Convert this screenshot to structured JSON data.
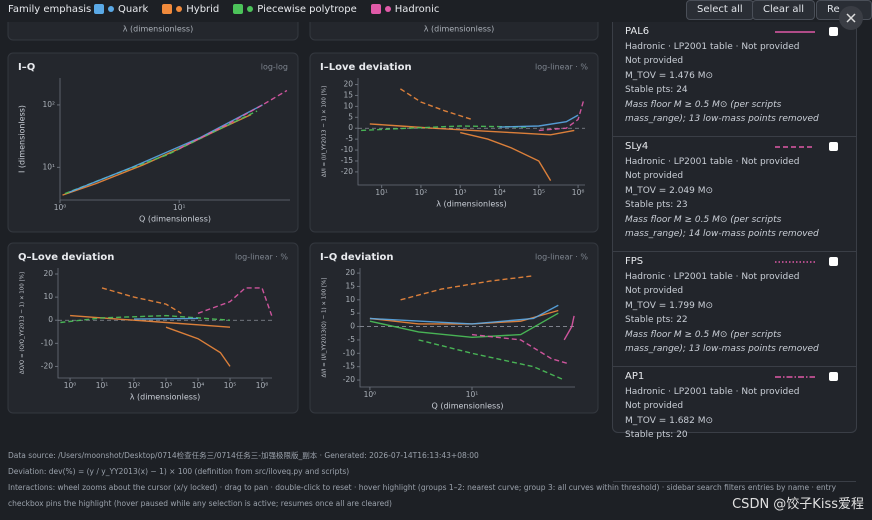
{
  "header": {
    "label": "Family emphasis",
    "families": [
      {
        "name": "Quark",
        "color": "#5aa9e6"
      },
      {
        "name": "Hybrid",
        "color": "#f08a3c"
      },
      {
        "name": "Piecewise polytrope",
        "color": "#4cc35a"
      },
      {
        "name": "Hadronic",
        "color": "#e05aa8"
      }
    ],
    "buttons": [
      "Select all",
      "Clear all",
      "Re"
    ]
  },
  "top_partial_labels": [
    "λ (dimensionless)",
    "λ (dimensionless)"
  ],
  "panels": [
    {
      "title": "I–Q",
      "scale": "log-log",
      "xlabel": "Q (dimensionless)",
      "ylabel": "I (dimensionless)",
      "xscale": "log",
      "yscale": "log",
      "xlim": [
        1,
        85
      ],
      "ylim": [
        3,
        270
      ],
      "xticks": [
        {
          "value": 1,
          "label": "10⁰"
        },
        {
          "value": 10,
          "label": "10¹"
        }
      ],
      "yticks": [
        {
          "value": 10,
          "label": "10¹"
        },
        {
          "value": 100,
          "label": "10²"
        }
      ],
      "series": [
        {
          "color": "#f08a3c",
          "x": [
            1.05,
            2,
            5,
            10,
            20,
            40
          ],
          "values": [
            3.6,
            5.5,
            11,
            20,
            38,
            70
          ]
        },
        {
          "color": "#4cc35a",
          "x": [
            1.1,
            3,
            8,
            20,
            45
          ],
          "values": [
            3.8,
            8,
            16,
            38,
            80
          ]
        },
        {
          "color": "#5aa9e6",
          "x": [
            1.2,
            4,
            15,
            50
          ],
          "values": [
            4,
            10,
            30,
            100
          ]
        },
        {
          "color": "#e05aa8",
          "x": [
            10,
            25,
            50,
            80
          ],
          "values": [
            20,
            48,
            100,
            170
          ]
        }
      ]
    },
    {
      "title": "I–Love deviation",
      "scale": "log-linear · %",
      "xlabel": "λ (dimensionless)",
      "ylabel": "ΔI/I = (I/I_YY2013 − 1) × 100 [%]",
      "xscale": "log",
      "yscale": "linear",
      "xlim": [
        2.5,
        1500000
      ],
      "ylim": [
        -26,
        23
      ],
      "xticks": [
        {
          "value": 10,
          "label": "10¹"
        },
        {
          "value": 100,
          "label": "10²"
        },
        {
          "value": 1000,
          "label": "10³"
        },
        {
          "value": 10000,
          "label": "10⁴"
        },
        {
          "value": 100000,
          "label": "10⁵"
        },
        {
          "value": 1000000,
          "label": "10⁶"
        }
      ],
      "yticks": [
        -20,
        -15,
        -10,
        -5,
        0,
        5,
        10,
        15,
        20
      ],
      "series": [
        {
          "color": "#f08a3c",
          "x": [
            5,
            30,
            200,
            2000,
            20000,
            200000,
            800000
          ],
          "values": [
            2,
            1,
            0,
            -1,
            -2,
            -3,
            -1
          ]
        },
        {
          "color": "#f08a3c",
          "x": [
            30,
            100,
            400,
            2000
          ],
          "values": [
            18,
            12,
            8,
            4
          ]
        },
        {
          "color": "#f08a3c",
          "x": [
            1000,
            5000,
            20000,
            100000,
            200000
          ],
          "values": [
            -2,
            -5,
            -9,
            -15,
            -24
          ]
        },
        {
          "color": "#4cc35a",
          "x": [
            3,
            50,
            1000,
            50000
          ],
          "values": [
            -1,
            0,
            1,
            0.5
          ]
        },
        {
          "color": "#5aa9e6",
          "x": [
            10000,
            100000,
            500000,
            1000000
          ],
          "values": [
            0.5,
            1,
            3,
            6
          ]
        },
        {
          "color": "#e05aa8",
          "x": [
            100000,
            500000,
            1000000,
            1400000
          ],
          "values": [
            -1,
            0,
            4,
            13
          ]
        }
      ]
    },
    {
      "title": "Q–Love deviation",
      "scale": "log-linear · %",
      "xlabel": "λ (dimensionless)",
      "ylabel": "ΔQ/Q = (Q/Q_YY2013 − 1) × 100 [%]",
      "xscale": "log",
      "yscale": "linear",
      "xlim": [
        0.42,
        2050000
      ],
      "ylim": [
        -25,
        22.6
      ],
      "xticks": [
        {
          "value": 1,
          "label": "10⁰"
        },
        {
          "value": 10,
          "label": "10¹"
        },
        {
          "value": 100,
          "label": "10²"
        },
        {
          "value": 1000,
          "label": "10³"
        },
        {
          "value": 10000,
          "label": "10⁴"
        },
        {
          "value": 100000,
          "label": "10⁵"
        },
        {
          "value": 1000000,
          "label": "10⁶"
        }
      ],
      "yticks": [
        -20,
        -10,
        0,
        10,
        20
      ],
      "series": [
        {
          "color": "#f08a3c",
          "x": [
            1,
            10,
            100,
            1000,
            10000,
            100000
          ],
          "values": [
            2,
            1,
            0,
            -1,
            -2,
            -3
          ]
        },
        {
          "color": "#f08a3c",
          "x": [
            10,
            100,
            1000,
            3000
          ],
          "values": [
            14,
            10,
            7,
            3
          ]
        },
        {
          "color": "#f08a3c",
          "x": [
            1000,
            10000,
            50000,
            100000
          ],
          "values": [
            -3,
            -8,
            -14,
            -20
          ]
        },
        {
          "color": "#4cc35a",
          "x": [
            0.5,
            10,
            1000,
            100000
          ],
          "values": [
            -1,
            1,
            2,
            0
          ]
        },
        {
          "color": "#5aa9e6",
          "x": [
            100,
            10000
          ],
          "values": [
            0.5,
            0.8
          ]
        },
        {
          "color": "#e05aa8",
          "x": [
            10000,
            100000,
            300000,
            1000000,
            2000000
          ],
          "values": [
            3,
            8,
            14,
            14,
            2
          ]
        }
      ]
    },
    {
      "title": "I–Q deviation",
      "scale": "log-linear · %",
      "xlabel": "Q (dimensionless)",
      "ylabel": "ΔI/I = (I/I_YY2013(Q) − 1) × 100 [%]",
      "xscale": "log",
      "yscale": "linear",
      "xlim": [
        0.8,
        102
      ],
      "ylim": [
        -22.6,
        21.9
      ],
      "xticks": [
        {
          "value": 1,
          "label": "10⁰"
        },
        {
          "value": 10,
          "label": "10¹"
        }
      ],
      "yticks": [
        -20,
        -15,
        -10,
        -5,
        0,
        5,
        10,
        15,
        20
      ],
      "series": [
        {
          "color": "#f08a3c",
          "x": [
            1,
            3,
            10,
            30,
            70
          ],
          "values": [
            3,
            1,
            1,
            2,
            6
          ]
        },
        {
          "color": "#f08a3c",
          "x": [
            2,
            5,
            15,
            40
          ],
          "values": [
            10,
            14,
            17,
            19
          ]
        },
        {
          "color": "#4cc35a",
          "x": [
            1,
            3,
            10,
            30,
            70
          ],
          "values": [
            2,
            -2,
            -4,
            -3,
            5
          ]
        },
        {
          "color": "#4cc35a",
          "x": [
            3,
            10,
            40,
            80
          ],
          "values": [
            -5,
            -10,
            -15,
            -20
          ]
        },
        {
          "color": "#5aa9e6",
          "x": [
            1,
            10,
            40,
            70
          ],
          "values": [
            3,
            1,
            3,
            8
          ]
        },
        {
          "color": "#e05aa8",
          "x": [
            10,
            30,
            60,
            90
          ],
          "values": [
            -3,
            -5,
            -12,
            -14
          ]
        },
        {
          "color": "#e05aa8",
          "x": [
            80,
            95,
            100
          ],
          "values": [
            -5,
            0,
            4
          ]
        }
      ]
    }
  ],
  "sidebar": {
    "entries": [
      {
        "name": "PAL6",
        "style": "solid",
        "color": "#e05aa8",
        "lines": [
          "Hadronic · LP2001 table · Not provided",
          "Not provided",
          "M_TOV = 1.476 M⊙",
          "Stable pts: 24"
        ],
        "note": "Mass floor M ≥ 0.5 M⊙ (per scripts mass_range); 13 low-mass points removed"
      },
      {
        "name": "SLy4",
        "style": "dashed",
        "color": "#e05aa8",
        "lines": [
          "Hadronic · LP2001 table · Not provided",
          "Not provided",
          "M_TOV = 2.049 M⊙",
          "Stable pts: 23"
        ],
        "note": "Mass floor M ≥ 0.5 M⊙ (per scripts mass_range); 14 low-mass points removed"
      },
      {
        "name": "FPS",
        "style": "dotted",
        "color": "#e05aa8",
        "lines": [
          "Hadronic · LP2001 table · Not provided",
          "Not provided",
          "M_TOV = 1.799 M⊙",
          "Stable pts: 22"
        ],
        "note": "Mass floor M ≥ 0.5 M⊙ (per scripts mass_range); 13 low-mass points removed"
      },
      {
        "name": "AP1",
        "style": "dashdot",
        "color": "#e05aa8",
        "lines": [
          "Hadronic · LP2001 table · Not provided",
          "Not provided",
          "M_TOV = 1.682 M⊙",
          "Stable pts: 20"
        ],
        "note": ""
      }
    ]
  },
  "footer": {
    "lines": [
      "Data source: /Users/moonshot/Desktop/0714检查任务三/0714任务三-加强极限版_副本 · Generated: 2026-07-14T16:13:43+08:00",
      "Deviation: dev(%) = (y / y_YY2013(x) − 1) × 100 (definition from src/iloveq.py and scripts)",
      "Interactions: wheel zooms about the cursor (x/y locked) · drag to pan · double-click to reset · hover highlight (groups 1–2: nearest curve; group 3: all curves within threshold) · sidebar search filters entries by name · entry checkbox pins the highlight (hover paused while any selection is active; resumes once all are cleared)"
    ]
  },
  "watermark": "CSDN @饺子Kiss爱程"
}
